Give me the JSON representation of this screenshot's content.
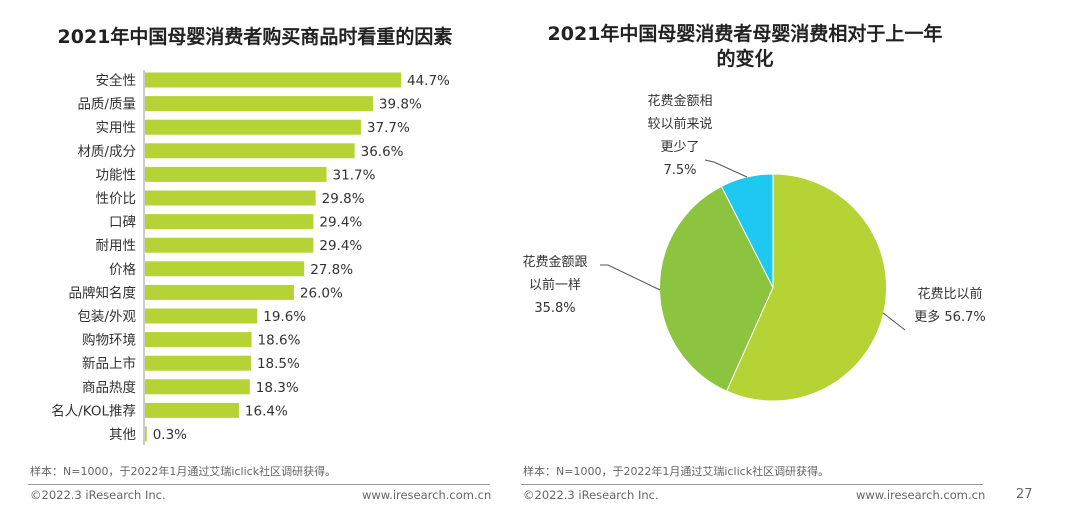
{
  "page_number": "27",
  "footer": {
    "copyright": "©2022.3 iResearch Inc.",
    "website": "www.iresearch.com.cn"
  },
  "chart_data": [
    {
      "type": "bar",
      "orientation": "horizontal",
      "title": "2021年中国母婴消费者购买商品时看重的因素",
      "note": "样本：N=1000，于2022年1月通过艾瑞iclick社区调研获得。",
      "categories": [
        "安全性",
        "品质/质量",
        "实用性",
        "材质/成分",
        "功能性",
        "性价比",
        "口碑",
        "耐用性",
        "价格",
        "品牌知名度",
        "包装/外观",
        "购物环境",
        "新品上市",
        "商品热度",
        "名人/KOL推荐",
        "其他"
      ],
      "values": [
        44.7,
        39.8,
        37.7,
        36.6,
        31.7,
        29.8,
        29.4,
        29.4,
        27.8,
        26.0,
        19.6,
        18.6,
        18.5,
        18.3,
        16.4,
        0.3
      ],
      "labels": [
        "44.7%",
        "39.8%",
        "37.7%",
        "36.6%",
        "31.7%",
        "29.8%",
        "29.4%",
        "29.4%",
        "27.8%",
        "26.0%",
        "19.6%",
        "18.6%",
        "18.5%",
        "18.3%",
        "16.4%",
        "0.3%"
      ],
      "unit": "%",
      "color": "#b5d334"
    },
    {
      "type": "pie",
      "title_line1": "2021年中国母婴消费者母婴消费相对于上一年",
      "title_line2": "的变化",
      "note": "样本：N=1000，于2022年1月通过艾瑞iclick社区调研获得。",
      "slices": [
        {
          "label_lines": [
            "花费比以前",
            "更多 56.7%"
          ],
          "value": 56.7,
          "color": "#b5d334"
        },
        {
          "label_lines": [
            "花费金额跟",
            "以前一样",
            "35.8%"
          ],
          "value": 35.8,
          "color": "#8cc43f"
        },
        {
          "label_lines": [
            "花费金额相",
            "较以前来说",
            "更少了",
            "7.5%"
          ],
          "value": 7.5,
          "color": "#1ec8f0"
        }
      ]
    }
  ]
}
